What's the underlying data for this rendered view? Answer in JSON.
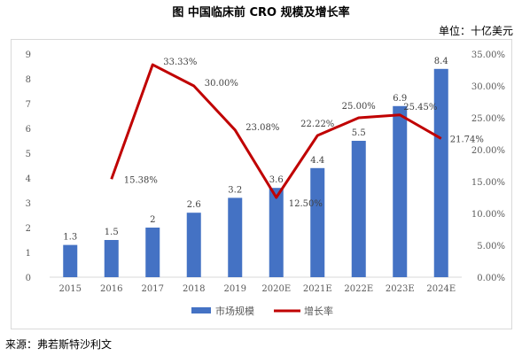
{
  "header": {
    "title": "图  中国临床前 CRO 规模及增长率",
    "unit": "单位：十亿美元"
  },
  "footer": {
    "source": "来源：弗若斯特沙利文"
  },
  "colors": {
    "bar": "#4472C4",
    "line": "#C00000",
    "axis_text": "#595959"
  },
  "chart_data": {
    "type": "bar",
    "categories": [
      "2015",
      "2016",
      "2017",
      "2018",
      "2019",
      "2020E",
      "2021E",
      "2022E",
      "2023E",
      "2024E"
    ],
    "series": [
      {
        "name": "市场规模",
        "type": "bar",
        "axis": "left",
        "values": [
          1.3,
          1.5,
          2,
          2.6,
          3.2,
          3.6,
          4.4,
          5.5,
          6.9,
          8.4
        ],
        "labels": [
          "1.3",
          "1.5",
          "2",
          "2.6",
          "3.2",
          "3.6",
          "4.4",
          "5.5",
          "6.9",
          "8.4"
        ]
      },
      {
        "name": "增长率",
        "type": "line",
        "axis": "right",
        "values": [
          null,
          15.38,
          33.33,
          30.0,
          23.08,
          12.5,
          22.22,
          25.0,
          25.45,
          21.74
        ],
        "labels": [
          null,
          "15.38%",
          "33.33%",
          "30.00%",
          "23.08%",
          "12.50%",
          "22.22%",
          "25.00%",
          "25.45%",
          "21.74%"
        ]
      }
    ],
    "y_left": {
      "min": 0,
      "max": 9,
      "ticks": [
        "0",
        "1",
        "2",
        "3",
        "4",
        "5",
        "6",
        "7",
        "8",
        "9"
      ]
    },
    "y_right": {
      "min": 0,
      "max": 35,
      "ticks": [
        "0.00%",
        "5.00%",
        "10.00%",
        "15.00%",
        "20.00%",
        "25.00%",
        "30.00%",
        "35.00%"
      ]
    },
    "grid": false,
    "legend": {
      "position": "bottom",
      "items": [
        "市场规模",
        "增长率"
      ]
    }
  }
}
